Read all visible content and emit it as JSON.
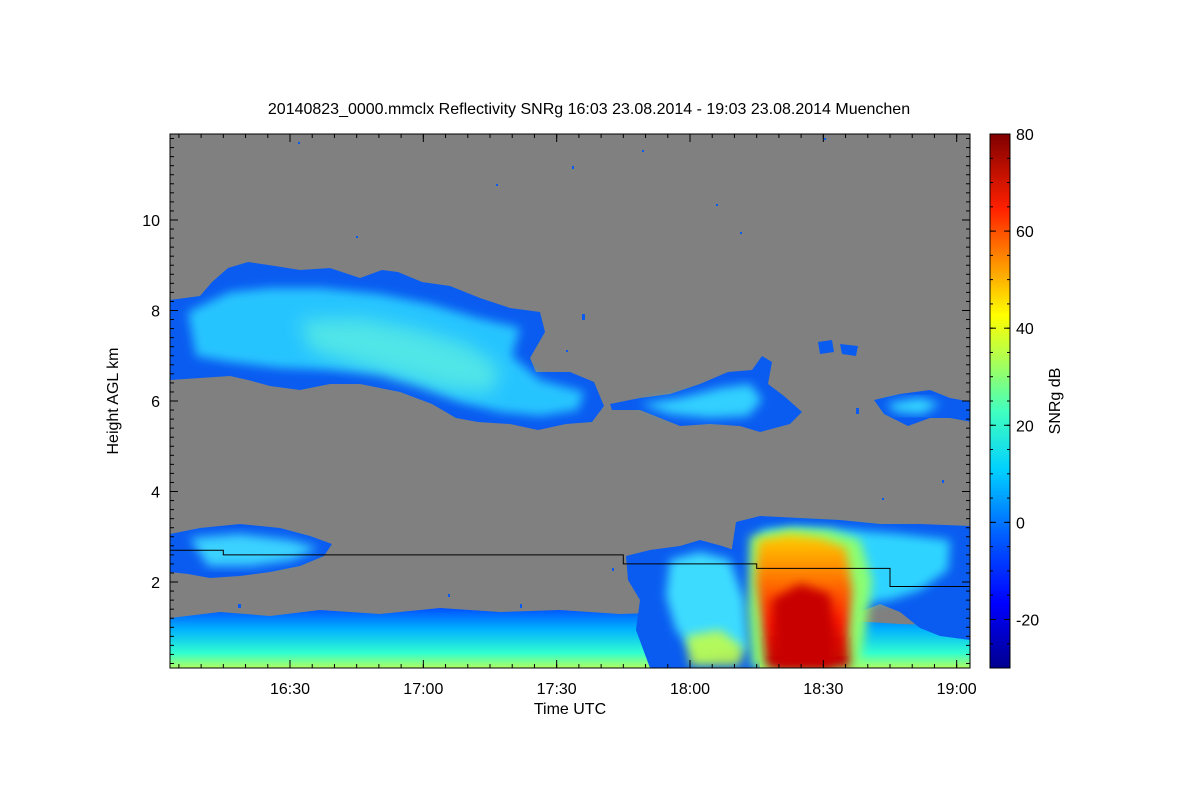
{
  "chart_data": {
    "type": "heatmap",
    "title": "20140823_0000.mmclx Reflectivity SNRg   16:03 23.08.2014 - 19:03 23.08.2014 Muenchen",
    "xlabel": "Time UTC",
    "ylabel": "Height AGL km",
    "colorbar_label": "SNRg dB",
    "x_ticks": [
      {
        "value": 16.5,
        "label": "16:30"
      },
      {
        "value": 17.0,
        "label": "17:00"
      },
      {
        "value": 17.5,
        "label": "17:30"
      },
      {
        "value": 18.0,
        "label": "18:00"
      },
      {
        "value": 18.5,
        "label": "18:30"
      },
      {
        "value": 19.0,
        "label": "19:00"
      }
    ],
    "y_ticks": [
      {
        "value": 2,
        "label": "2"
      },
      {
        "value": 4,
        "label": "4"
      },
      {
        "value": 6,
        "label": "6"
      },
      {
        "value": 8,
        "label": "8"
      },
      {
        "value": 10,
        "label": "10"
      }
    ],
    "colorbar_ticks": [
      {
        "value": -20,
        "label": "-20"
      },
      {
        "value": 0,
        "label": "0"
      },
      {
        "value": 20,
        "label": "20"
      },
      {
        "value": 40,
        "label": "40"
      },
      {
        "value": 60,
        "label": "60"
      },
      {
        "value": 80,
        "label": "80"
      }
    ],
    "xlim": [
      16.05,
      19.05
    ],
    "ylim": [
      0.1,
      11.9
    ],
    "zlim": [
      -30,
      80
    ],
    "background_color": "#808080",
    "colormap": [
      "#00008f",
      "#0000ff",
      "#0080ff",
      "#00ffff",
      "#80ff80",
      "#ffff00",
      "#ff8000",
      "#ff0000",
      "#800000"
    ],
    "echo_regions": [
      {
        "name": "cirrus-west",
        "x": [
          16.05,
          17.25
        ],
        "y": [
          6.5,
          9.0
        ],
        "snr": 5
      },
      {
        "name": "cirrus-mid",
        "x": [
          17.25,
          17.8
        ],
        "y": [
          5.5,
          6.6
        ],
        "snr": 3
      },
      {
        "name": "cirrus-east",
        "x": [
          17.85,
          18.4
        ],
        "y": [
          5.6,
          7.0
        ],
        "snr": 5
      },
      {
        "name": "cirrus-far-east",
        "x": [
          18.7,
          19.05
        ],
        "y": [
          5.9,
          6.4
        ],
        "snr": 0
      },
      {
        "name": "low-layer-west",
        "x": [
          16.05,
          16.65
        ],
        "y": [
          2.2,
          3.1
        ],
        "snr": 0
      },
      {
        "name": "boundary-layer",
        "x": [
          16.05,
          19.05
        ],
        "y": [
          0.1,
          1.1
        ],
        "snr": 10
      },
      {
        "name": "convection-edge",
        "x": [
          17.85,
          18.2
        ],
        "y": [
          0.1,
          2.8
        ],
        "snr": 15
      },
      {
        "name": "convective-anvil",
        "x": [
          18.2,
          19.05
        ],
        "y": [
          1.0,
          3.4
        ],
        "snr": 15
      },
      {
        "name": "convective-core",
        "x": [
          18.25,
          18.6
        ],
        "y": [
          0.1,
          3.3
        ],
        "snr": 55
      }
    ],
    "boundary_line": [
      {
        "x": 16.05,
        "y": 2.7
      },
      {
        "x": 16.25,
        "y": 2.7
      },
      {
        "x": 16.25,
        "y": 2.6
      },
      {
        "x": 17.75,
        "y": 2.6
      },
      {
        "x": 17.75,
        "y": 2.4
      },
      {
        "x": 18.25,
        "y": 2.4
      },
      {
        "x": 18.25,
        "y": 2.3
      },
      {
        "x": 18.75,
        "y": 2.3
      },
      {
        "x": 18.75,
        "y": 1.9
      },
      {
        "x": 19.05,
        "y": 1.9
      }
    ]
  }
}
